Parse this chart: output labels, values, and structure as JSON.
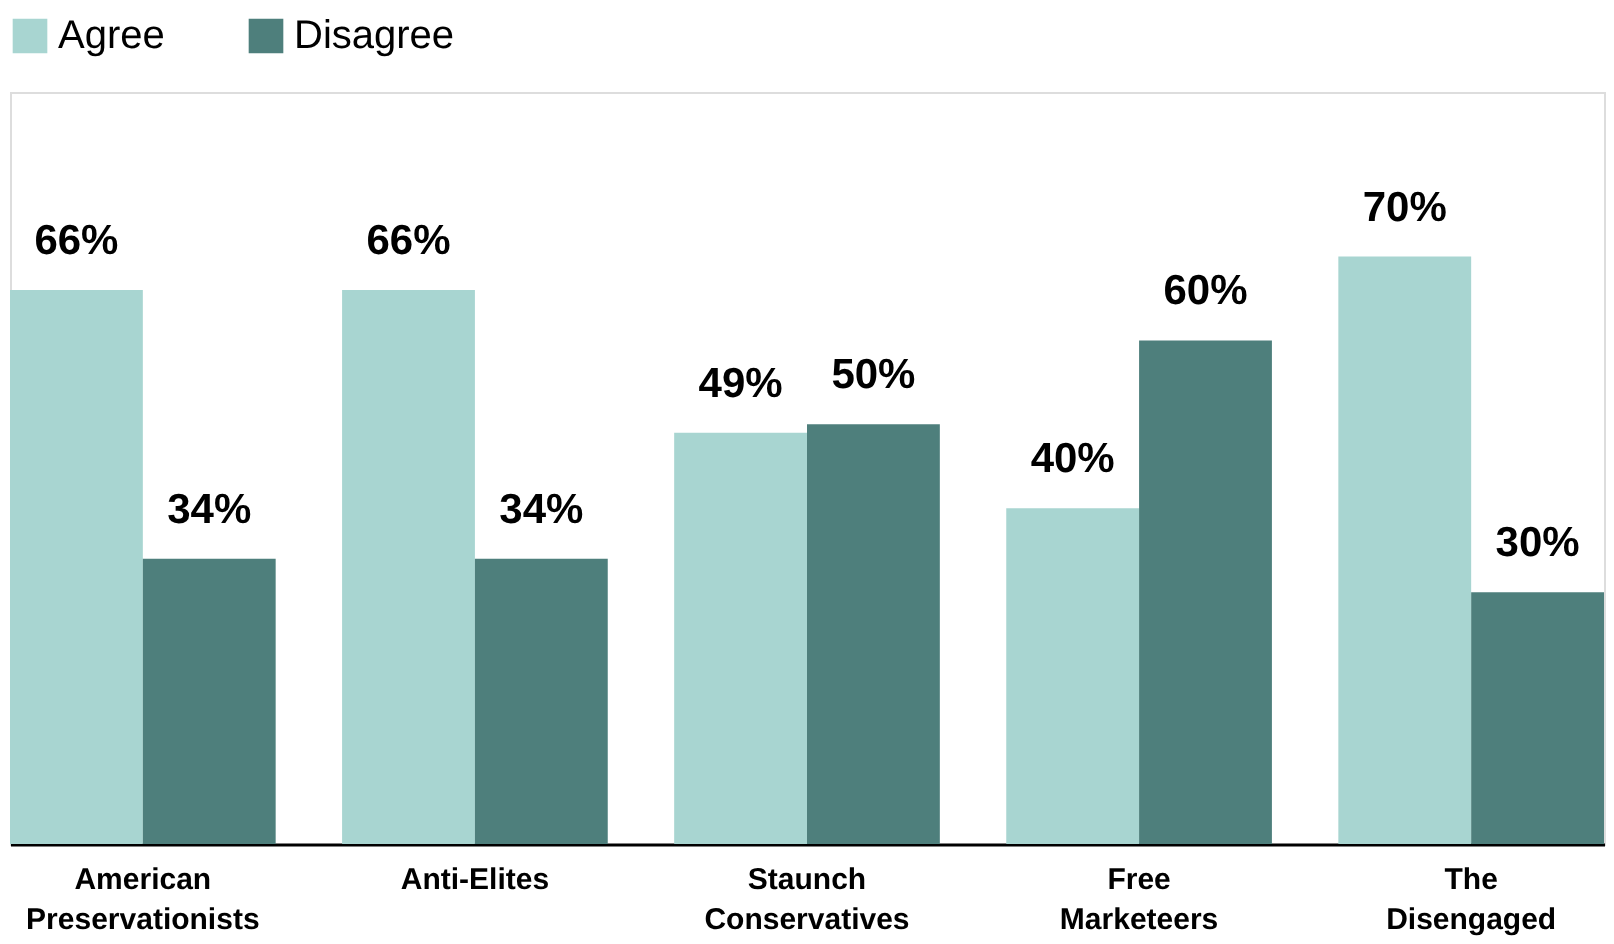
{
  "chart_data": {
    "type": "bar",
    "categories": [
      "American Preservationists",
      "Anti-Elites",
      "Staunch Conservatives",
      "Free Marketeers",
      "The Disengaged"
    ],
    "series": [
      {
        "name": "Agree",
        "color": "#a8d5d1",
        "values": [
          66,
          66,
          49,
          40,
          70
        ],
        "value_labels": [
          "66%",
          "66%",
          "49%",
          "40%",
          "70%"
        ]
      },
      {
        "name": "Disagree",
        "color": "#4e7f7c",
        "values": [
          34,
          34,
          50,
          60,
          30
        ],
        "value_labels": [
          "34%",
          "34%",
          "50%",
          "60%",
          "30%"
        ]
      }
    ],
    "legend": "top",
    "grid": false
  }
}
